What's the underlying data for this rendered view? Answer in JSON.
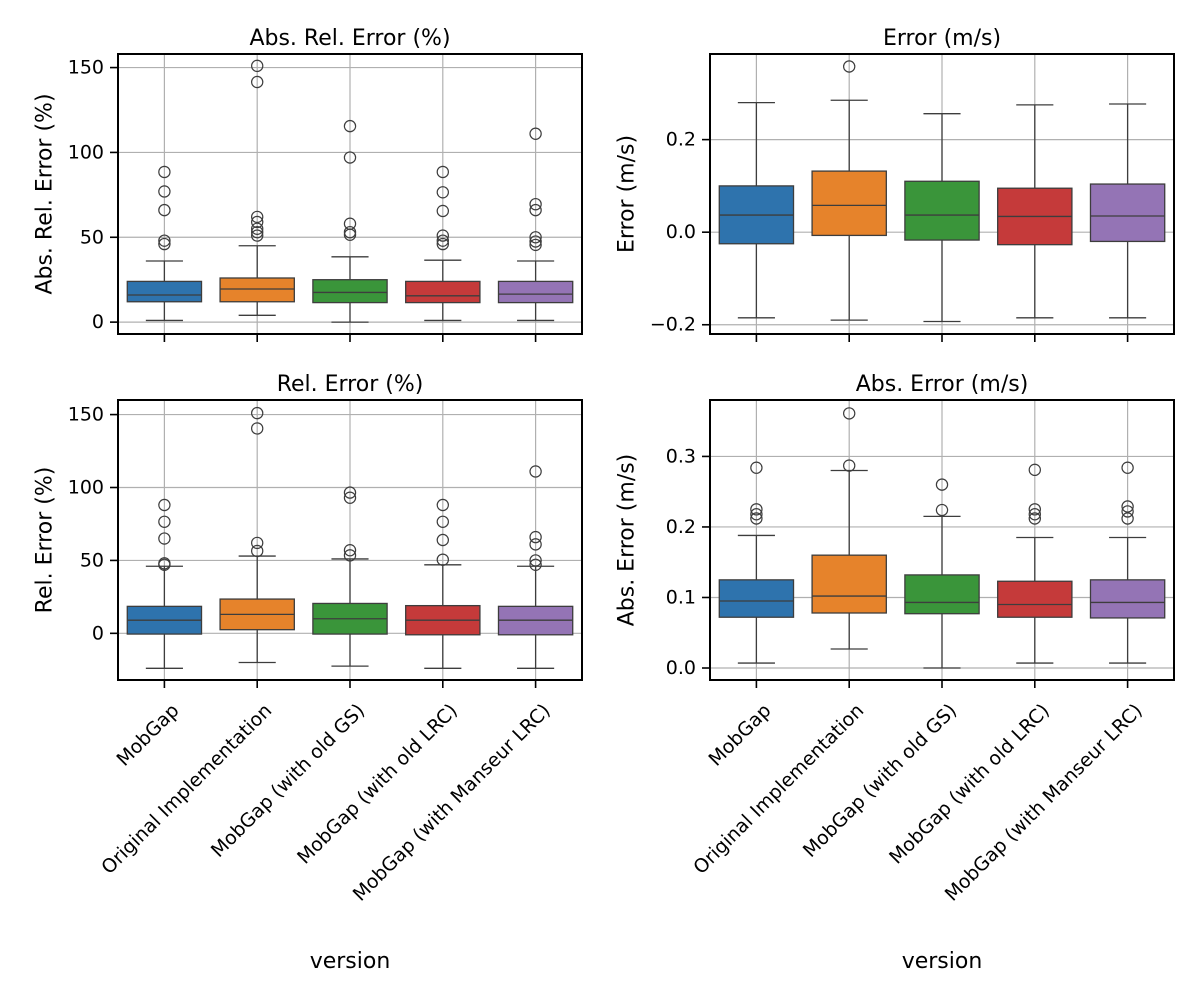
{
  "figure": {
    "x_axis_label": "version",
    "categories": [
      "MobGap",
      "Original Implementation",
      "MobGap (with old GS)",
      "MobGap (with old LRC)",
      "MobGap (with Manseur LRC)"
    ],
    "colors": [
      "#2e73ad",
      "#e6832b",
      "#3a953a",
      "#c53a3a",
      "#9474b5"
    ]
  },
  "chart_data": [
    {
      "type": "box",
      "title": "Abs. Rel. Error (%)",
      "ylabel": "Abs. Rel. Error (%)",
      "ylim": [
        -7,
        158
      ],
      "yticks": [
        0,
        50,
        100,
        150
      ],
      "grid": true,
      "boxes": [
        {
          "category": "MobGap",
          "whisker_low": 1,
          "q1": 12,
          "median": 16,
          "q3": 24,
          "whisker_high": 36,
          "outliers": [
            46,
            48,
            66,
            77,
            88.5
          ]
        },
        {
          "category": "Original Implementation",
          "whisker_low": 4,
          "q1": 12,
          "median": 19.5,
          "q3": 26,
          "whisker_high": 45,
          "outliers": [
            51,
            53,
            55,
            59,
            62,
            141.5,
            151
          ]
        },
        {
          "category": "MobGap (with old GS)",
          "whisker_low": 0,
          "q1": 11.5,
          "median": 17.5,
          "q3": 25,
          "whisker_high": 38.5,
          "outliers": [
            51.5,
            53,
            58,
            97,
            115.5
          ]
        },
        {
          "category": "MobGap (with old LRC)",
          "whisker_low": 1,
          "q1": 11.5,
          "median": 15.5,
          "q3": 24,
          "whisker_high": 36.5,
          "outliers": [
            46,
            48,
            51,
            65.5,
            76.5,
            88.5
          ]
        },
        {
          "category": "MobGap (with Manseur LRC)",
          "whisker_low": 1,
          "q1": 11.5,
          "median": 16.5,
          "q3": 24,
          "whisker_high": 36,
          "outliers": [
            45.5,
            47.5,
            50,
            66,
            69.5,
            111
          ]
        }
      ]
    },
    {
      "type": "box",
      "title": "Error (m/s)",
      "ylabel": "Error (m/s)",
      "ylim": [
        -0.22,
        0.385
      ],
      "yticks": [
        -0.2,
        0.0,
        0.2
      ],
      "tick_labels": [
        "−0.2",
        "0.0",
        "0.2"
      ],
      "grid": true,
      "boxes": [
        {
          "category": "MobGap",
          "whisker_low": -0.185,
          "q1": -0.025,
          "median": 0.037,
          "q3": 0.1,
          "whisker_high": 0.28,
          "outliers": []
        },
        {
          "category": "Original Implementation",
          "whisker_low": -0.19,
          "q1": -0.007,
          "median": 0.058,
          "q3": 0.132,
          "whisker_high": 0.285,
          "outliers": [
            0.358
          ]
        },
        {
          "category": "MobGap (with old GS)",
          "whisker_low": -0.193,
          "q1": -0.017,
          "median": 0.037,
          "q3": 0.11,
          "whisker_high": 0.256,
          "outliers": []
        },
        {
          "category": "MobGap (with old LRC)",
          "whisker_low": -0.185,
          "q1": -0.027,
          "median": 0.034,
          "q3": 0.095,
          "whisker_high": 0.275,
          "outliers": []
        },
        {
          "category": "MobGap (with Manseur LRC)",
          "whisker_low": -0.185,
          "q1": -0.02,
          "median": 0.035,
          "q3": 0.104,
          "whisker_high": 0.277,
          "outliers": []
        }
      ]
    },
    {
      "type": "box",
      "title": "Rel. Error (%)",
      "ylabel": "Rel. Error (%)",
      "ylim": [
        -32,
        160
      ],
      "yticks": [
        0,
        50,
        100,
        150
      ],
      "grid": true,
      "boxes": [
        {
          "category": "MobGap",
          "whisker_low": -24,
          "q1": -0.5,
          "median": 9,
          "q3": 18.5,
          "whisker_high": 46,
          "outliers": [
            47,
            48,
            65,
            76.5,
            88
          ]
        },
        {
          "category": "Original Implementation",
          "whisker_low": -20,
          "q1": 2.5,
          "median": 13,
          "q3": 23.5,
          "whisker_high": 53,
          "outliers": [
            56.5,
            62,
            140.5,
            151
          ]
        },
        {
          "category": "MobGap (with old GS)",
          "whisker_low": -22.5,
          "q1": -0.5,
          "median": 10,
          "q3": 20.5,
          "whisker_high": 51,
          "outliers": [
            53.5,
            57,
            93,
            96.5
          ]
        },
        {
          "category": "MobGap (with old LRC)",
          "whisker_low": -24,
          "q1": -1,
          "median": 9,
          "q3": 19,
          "whisker_high": 47,
          "outliers": [
            50.5,
            64,
            76.5,
            88
          ]
        },
        {
          "category": "MobGap (with Manseur LRC)",
          "whisker_low": -24,
          "q1": -1,
          "median": 9,
          "q3": 18.5,
          "whisker_high": 46,
          "outliers": [
            47,
            50,
            61,
            66,
            111
          ]
        }
      ]
    },
    {
      "type": "box",
      "title": "Abs. Error (m/s)",
      "ylabel": "Abs. Error (m/s)",
      "ylim": [
        -0.017,
        0.38
      ],
      "yticks": [
        0.0,
        0.1,
        0.2,
        0.3
      ],
      "tick_labels": [
        "0.0",
        "0.1",
        "0.2",
        "0.3"
      ],
      "grid": true,
      "boxes": [
        {
          "category": "MobGap",
          "whisker_low": 0.007,
          "q1": 0.072,
          "median": 0.095,
          "q3": 0.125,
          "whisker_high": 0.188,
          "outliers": [
            0.212,
            0.218,
            0.225,
            0.284
          ]
        },
        {
          "category": "Original Implementation",
          "whisker_low": 0.027,
          "q1": 0.078,
          "median": 0.102,
          "q3": 0.16,
          "whisker_high": 0.28,
          "outliers": [
            0.287,
            0.361
          ]
        },
        {
          "category": "MobGap (with old GS)",
          "whisker_low": 0.0,
          "q1": 0.077,
          "median": 0.093,
          "q3": 0.132,
          "whisker_high": 0.215,
          "outliers": [
            0.224,
            0.26
          ]
        },
        {
          "category": "MobGap (with old LRC)",
          "whisker_low": 0.007,
          "q1": 0.072,
          "median": 0.09,
          "q3": 0.123,
          "whisker_high": 0.185,
          "outliers": [
            0.212,
            0.218,
            0.225,
            0.281
          ]
        },
        {
          "category": "MobGap (with Manseur LRC)",
          "whisker_low": 0.007,
          "q1": 0.071,
          "median": 0.093,
          "q3": 0.125,
          "whisker_high": 0.185,
          "outliers": [
            0.212,
            0.222,
            0.229,
            0.284
          ]
        }
      ]
    }
  ]
}
